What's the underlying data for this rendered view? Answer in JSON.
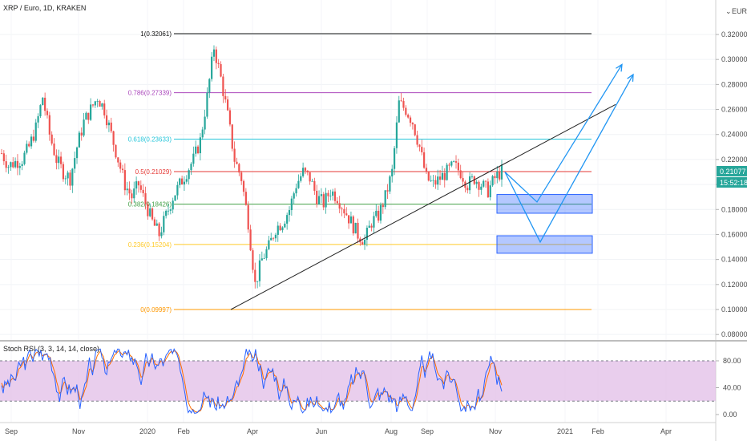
{
  "header": {
    "title": "XRP / Euro, 1D, KRAKEN"
  },
  "price_scale": {
    "currency": "EUR",
    "ticks": [
      "0.32000",
      "0.30000",
      "0.28000",
      "0.26000",
      "0.24000",
      "0.22000",
      "0.20000",
      "0.18000",
      "0.16000",
      "0.14000",
      "0.12000",
      "0.10000",
      "0.08000"
    ]
  },
  "price_badge": {
    "price": "0.21077",
    "countdown": "15:52:18",
    "color": "#26a69a"
  },
  "time_axis": {
    "labels": [
      "Sep",
      "Nov",
      "2020",
      "Feb",
      "Apr",
      "Jun",
      "Aug",
      "Sep",
      "Nov",
      "2021",
      "Feb",
      "Apr"
    ]
  },
  "indicator": {
    "title": "Stoch RSI (3, 3, 14, 14, close)",
    "ticks": [
      "80.00",
      "40.00",
      "0.00"
    ],
    "band": [
      20,
      80
    ],
    "k_color": "#2962ff",
    "d_color": "#ff6d00",
    "band_color": "#e1bee7"
  },
  "chart_data": {
    "type": "candlestick",
    "title": "XRP / Euro, 1D, KRAKEN",
    "ylim": [
      0.08,
      0.335
    ],
    "x": [
      "Sep",
      "Nov",
      "2020",
      "Feb",
      "Apr",
      "Jun",
      "Aug",
      "Sep",
      "Nov",
      "2021",
      "Feb",
      "Apr"
    ],
    "close_path": [
      0.225,
      0.215,
      0.218,
      0.22,
      0.23,
      0.245,
      0.27,
      0.24,
      0.22,
      0.21,
      0.205,
      0.23,
      0.25,
      0.26,
      0.27,
      0.26,
      0.24,
      0.22,
      0.2,
      0.19,
      0.2,
      0.185,
      0.17,
      0.16,
      0.175,
      0.19,
      0.2,
      0.21,
      0.22,
      0.235,
      0.27,
      0.31,
      0.285,
      0.255,
      0.22,
      0.205,
      0.17,
      0.12,
      0.14,
      0.15,
      0.165,
      0.17,
      0.18,
      0.2,
      0.21,
      0.205,
      0.19,
      0.185,
      0.195,
      0.19,
      0.18,
      0.17,
      0.16,
      0.155,
      0.17,
      0.175,
      0.19,
      0.21,
      0.265,
      0.26,
      0.25,
      0.23,
      0.205,
      0.2,
      0.205,
      0.21,
      0.215,
      0.21,
      0.2,
      0.205,
      0.2,
      0.195,
      0.205,
      0.21077
    ],
    "fibonacci": [
      {
        "label": "1(0.32061)",
        "value": 0.32061,
        "color": "#111111"
      },
      {
        "label": "0.786(0.27339)",
        "value": 0.27339,
        "color": "#ab47bc"
      },
      {
        "label": "0.618(0.23633)",
        "value": 0.23633,
        "color": "#26c6da"
      },
      {
        "label": "0.5(0.21029)",
        "value": 0.21029,
        "color": "#e53935"
      },
      {
        "label": "0.382(0.18426)",
        "value": 0.18426,
        "color": "#43a047"
      },
      {
        "label": "0.236(0.15204)",
        "value": 0.15204,
        "color": "#ffca28"
      },
      {
        "label": "0(0.09997)",
        "value": 0.09997,
        "color": "#ff9800"
      }
    ],
    "trendline": [
      [
        0.1,
        0.1
      ],
      [
        0.26,
        0.264
      ]
    ],
    "zones": [
      [
        0.177,
        0.192
      ],
      [
        0.145,
        0.159
      ]
    ],
    "projection_lows": [
      0.186,
      0.154
    ],
    "projection_targets": [
      0.296,
      0.288
    ]
  }
}
